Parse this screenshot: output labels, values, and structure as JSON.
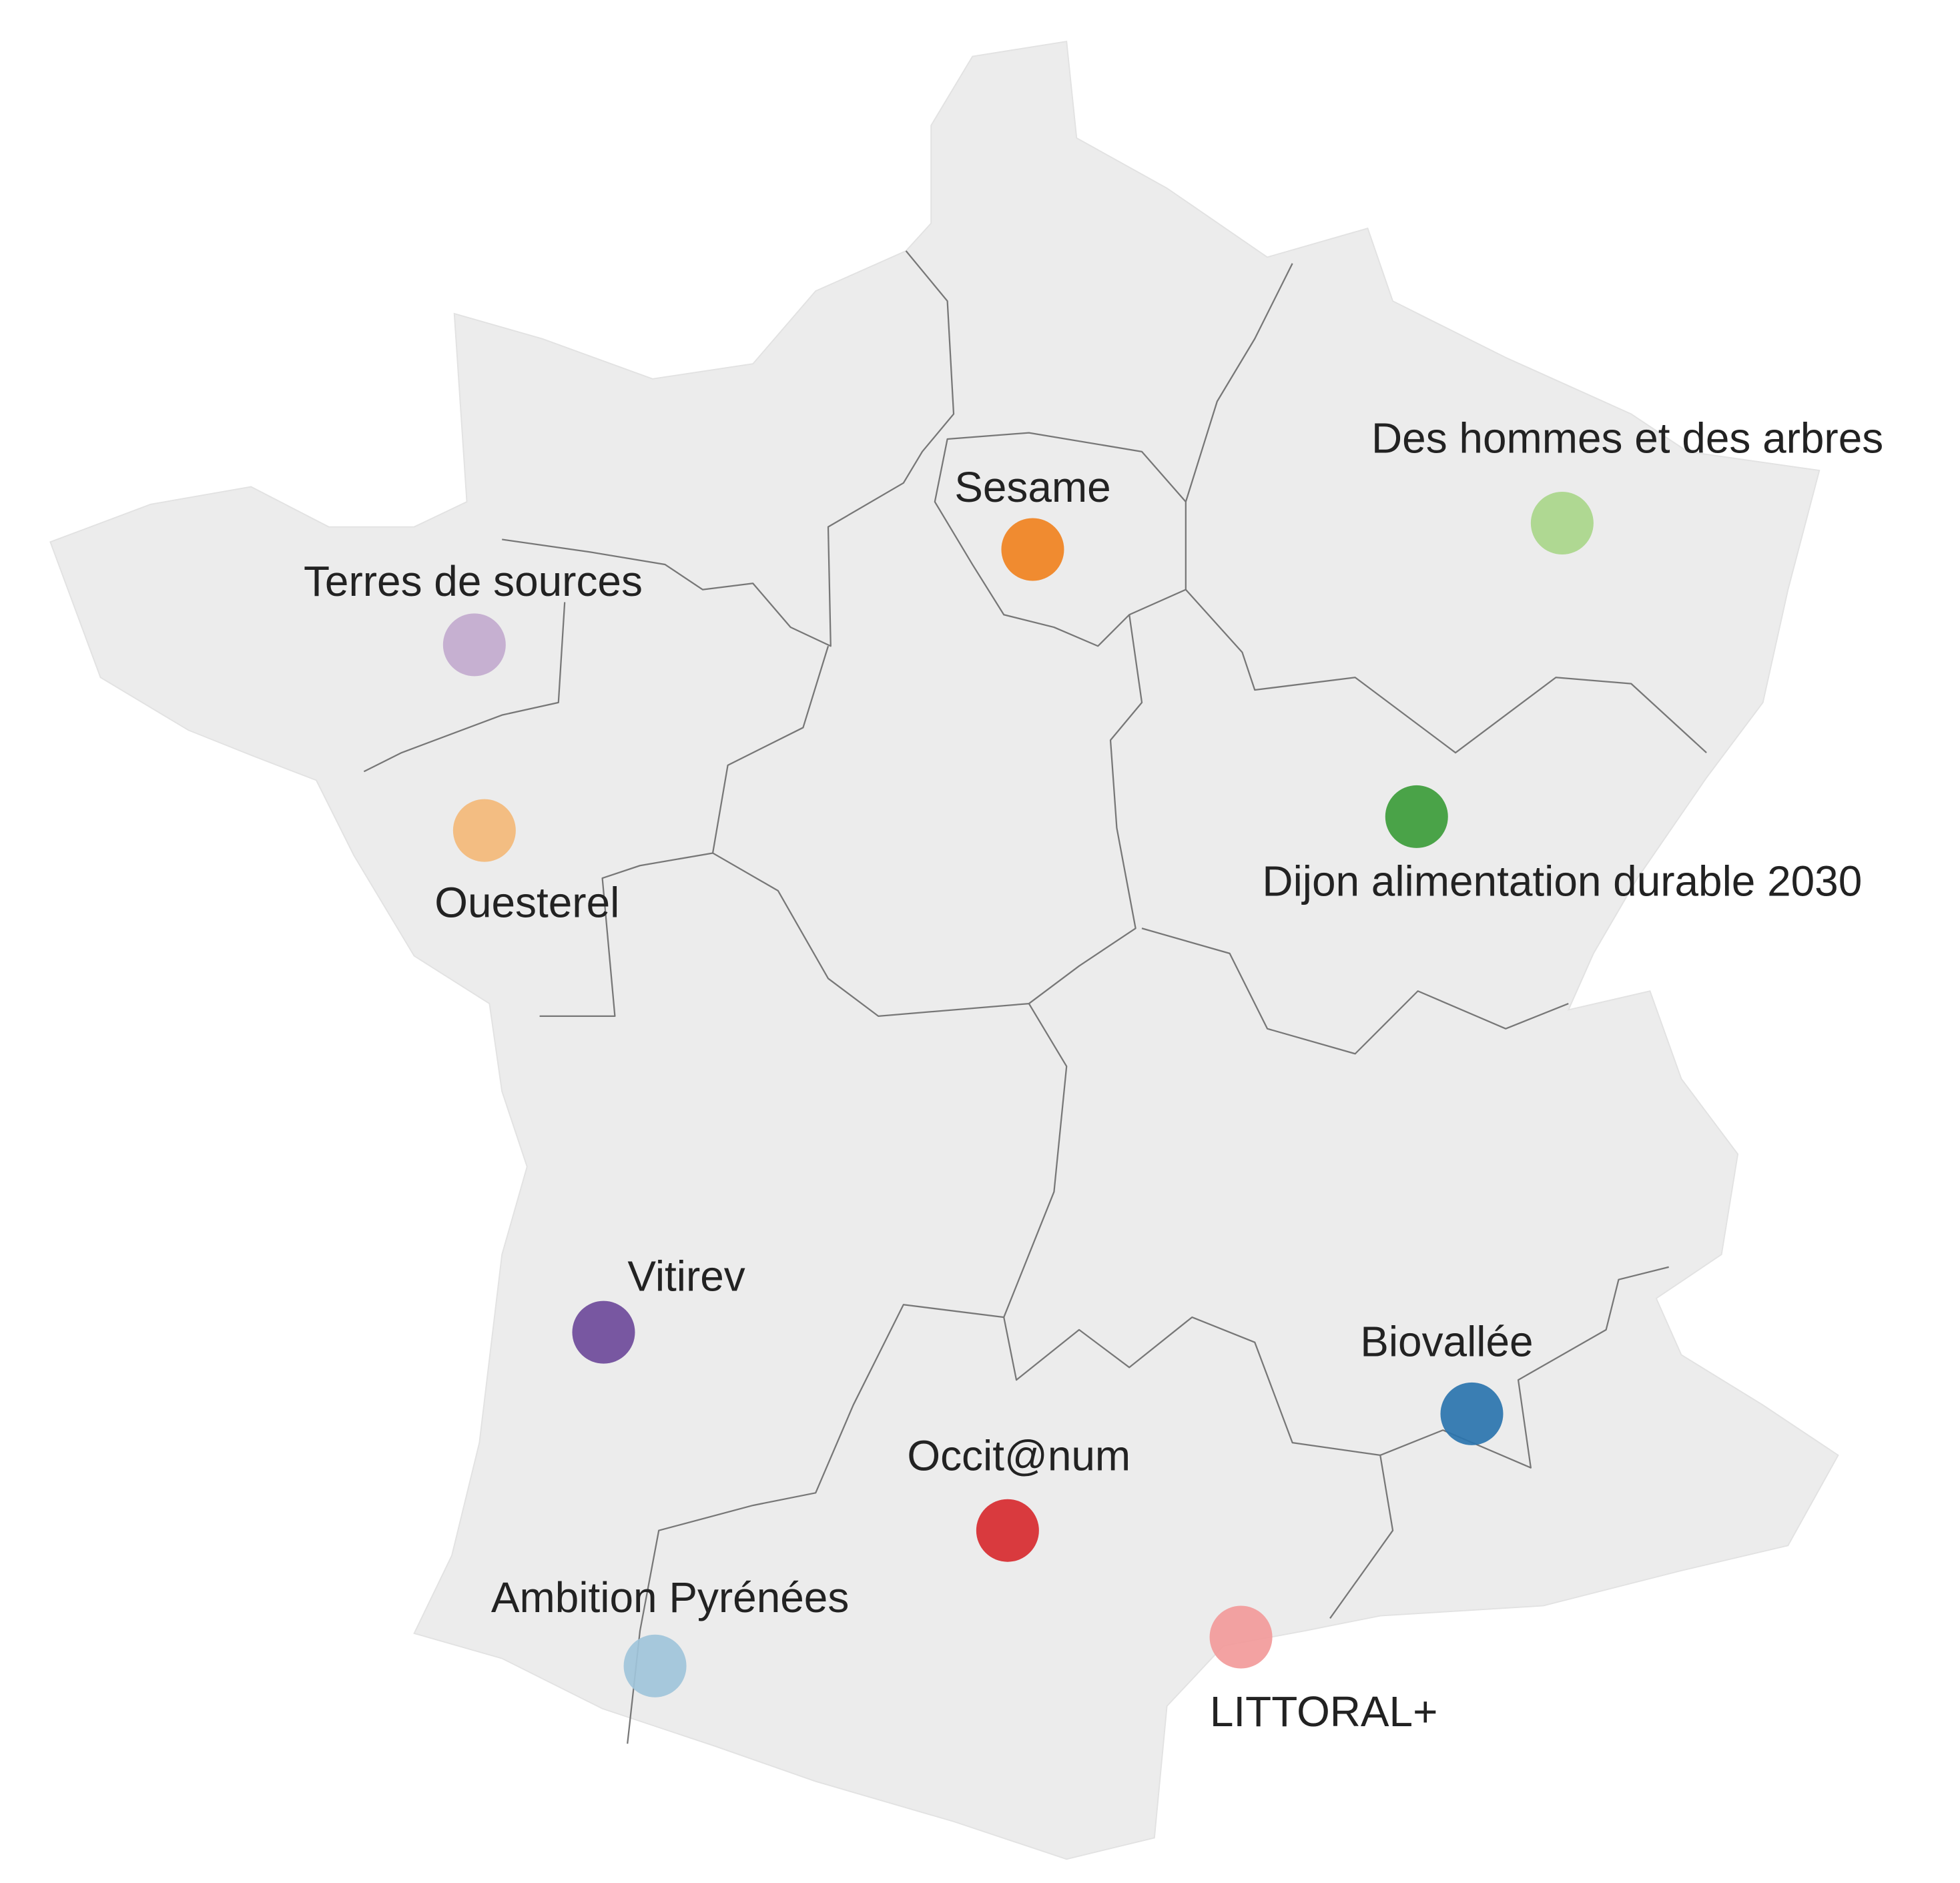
{
  "markers": [
    {
      "label": "Sesame",
      "color": "#f0821f"
    },
    {
      "label": "Des hommes et des arbres",
      "color": "#a9d68a"
    },
    {
      "label": "Terres de sources",
      "color": "#c2aace"
    },
    {
      "label": "Ouesterel",
      "color": "#f3b878"
    },
    {
      "label": "Dijon alimentation durable 2030",
      "color": "#3c9c3a"
    },
    {
      "label": "Vitirev",
      "color": "#6e4a9a"
    },
    {
      "label": "Biovallée",
      "color": "#2a74ae"
    },
    {
      "label": "Occit@num",
      "color": "#d72a2f"
    },
    {
      "label": "Ambition Pyrénées",
      "color": "#a0c4da"
    },
    {
      "label": "LITTORAL+",
      "color": "#f29a9a"
    }
  ]
}
